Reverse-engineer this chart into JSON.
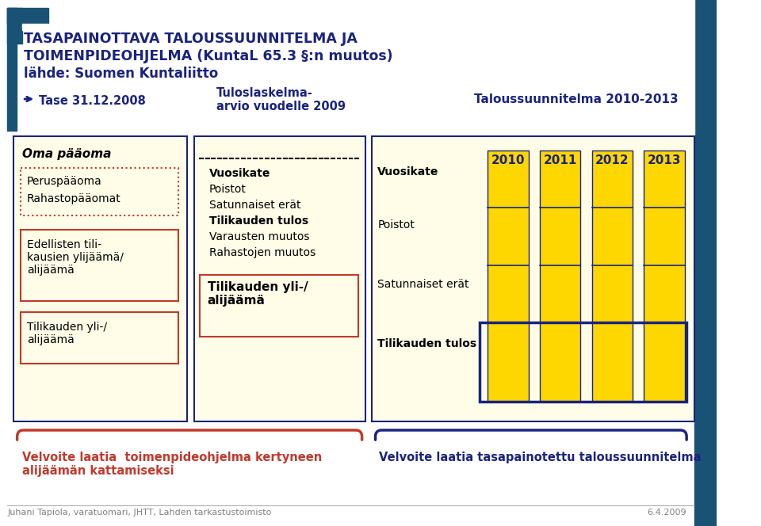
{
  "bg_color": "#ffffff",
  "header_bg": "#1a5276",
  "sidebar_color": "#1a5276",
  "cream_bg": "#fffde7",
  "yellow_bar": "#ffd700",
  "dark_blue_text": "#1a237e",
  "red_text": "#c0392b",
  "dark_red_border": "#c0392b",
  "title_line1": "TASAPAINOTTAVA TALOUSSUUNNITELMA JA",
  "title_line2": "TOIMENPIDEOHJELMA (KuntaL 65.3 §:n muutos)",
  "title_line3": "lähde: Suomen Kuntaliitto",
  "col1_header": "Tase 31.12.2008",
  "col2_header": "Tuloslaskelma-\narvio vuodelle 2009",
  "col3_header": "Taloussuunnitelma 2010-2013",
  "col1_items_dotted": [
    "Peruspääoma",
    "Rahastopääomat"
  ],
  "col1_title": "Oma pääoma",
  "col1_box1_text": "Edellisten tili-\nkausien ylijäämä/\nalijäämä",
  "col1_box2_text": "Tilikauden yli-/\nalijäämä",
  "col2_items": [
    "Vuosikate",
    "Poistot",
    "Satunnaiset erät",
    "Tilikauden tulos",
    "Varausten muutos",
    "Rahastojen muutos"
  ],
  "col2_bold": [
    0,
    3,
    6
  ],
  "col2_box_text": "Tilikauden yli-/\nalijäämä",
  "col3_row_labels": [
    "Vuosikate",
    "Poistot",
    "Satunnaiset erät",
    "Tilikauden tulos"
  ],
  "col3_years": [
    "2010",
    "2011",
    "2012",
    "2013"
  ],
  "footer_left_red": "Velvoite laatia  toimenpideohjelma kertyneen\nalijäämän kattamiseksi",
  "footer_right_blue": "Velvoite laatia tasapainotettu taloussuunnitelma",
  "footer_credit": "Juhani Tapiola, varatuomari, JHTT, Lahden tarkastustoimisto",
  "footer_date": "6.4.2009"
}
